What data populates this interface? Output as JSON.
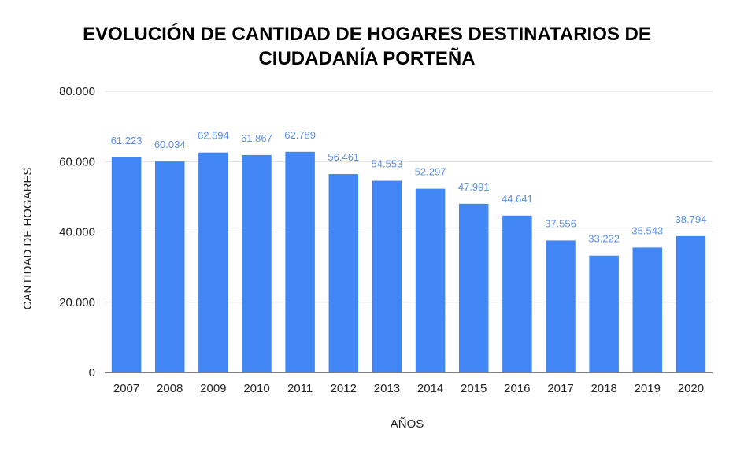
{
  "chart_data": {
    "type": "bar",
    "title_line1": "EVOLUCIÓN DE CANTIDAD DE HOGARES DESTINATARIOS DE",
    "title_line2": "CIUDADANÍA PORTEÑA",
    "xlabel": "AÑOS",
    "ylabel": "CANTIDAD DE HOGARES",
    "categories": [
      "2007",
      "2008",
      "2009",
      "2010",
      "2011",
      "2012",
      "2013",
      "2014",
      "2015",
      "2016",
      "2017",
      "2018",
      "2019",
      "2020"
    ],
    "values": [
      61223,
      60034,
      62594,
      61867,
      62789,
      56461,
      54553,
      52297,
      47991,
      44641,
      37556,
      33222,
      35543,
      38794
    ],
    "value_labels": [
      "61.223",
      "60.034",
      "62.594",
      "61.867",
      "62.789",
      "56.461",
      "54.553",
      "52.297",
      "47.991",
      "44.641",
      "37.556",
      "33.222",
      "35.543",
      "38.794"
    ],
    "ylim": [
      0,
      80000
    ],
    "yticks": [
      0,
      20000,
      40000,
      60000,
      80000
    ],
    "ytick_labels": [
      "0",
      "20.000",
      "40.000",
      "60.000",
      "80.000"
    ],
    "grid": true,
    "legend": "none",
    "colors": {
      "bar": "#4285F4",
      "data_label": "#5B8FE8",
      "grid": "#d9d9d9"
    }
  }
}
